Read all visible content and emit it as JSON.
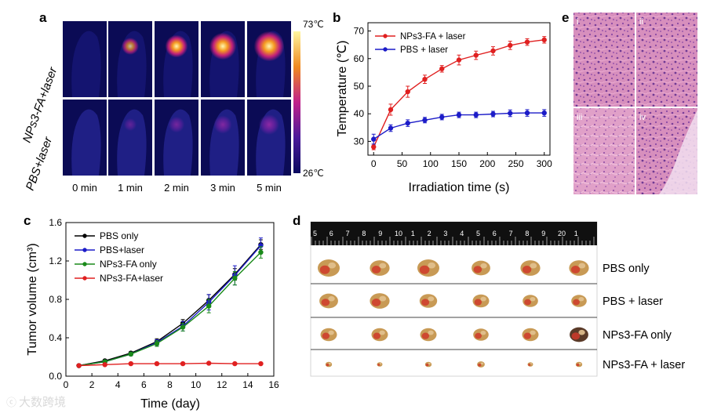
{
  "panels": {
    "a": {
      "letter": "a",
      "row_labels": [
        "NPs3-FA+laser",
        "PBS+laser"
      ],
      "time_labels": [
        "0 min",
        "1 min",
        "2 min",
        "3 min",
        "5 min"
      ],
      "colorbar_max": "73℃",
      "colorbar_min": "26℃",
      "hot_spot_intensity": {
        "npfa": [
          0.0,
          0.35,
          0.6,
          0.8,
          0.95
        ],
        "pbs": [
          0.0,
          0.15,
          0.3,
          0.4,
          0.5
        ]
      }
    },
    "b": {
      "letter": "b"
    },
    "c": {
      "letter": "c"
    },
    "d": {
      "letter": "d",
      "ruler_numbers": [
        "5",
        "6",
        "7",
        "8",
        "9",
        "10",
        "1",
        "2",
        "3",
        "4",
        "5",
        "6",
        "7",
        "8",
        "9",
        "20",
        "1"
      ],
      "rows": [
        {
          "label": "PBS only",
          "sizes": [
            1.0,
            0.9,
            1.0,
            0.85,
            0.9,
            0.9
          ],
          "dark": false
        },
        {
          "label": "PBS + laser",
          "sizes": [
            0.85,
            0.9,
            0.8,
            0.75,
            0.7,
            0.7
          ],
          "dark": false
        },
        {
          "label": "NPs3-FA only",
          "sizes": [
            0.75,
            0.75,
            0.75,
            0.7,
            0.75,
            0.85
          ],
          "dark": true
        },
        {
          "label": "NPs3-FA + laser",
          "sizes": [
            0.3,
            0.25,
            0.3,
            0.35,
            0.25,
            0.3
          ],
          "dark": false
        }
      ]
    },
    "e": {
      "letter": "e",
      "quadrants": [
        "i",
        "ii",
        "iii",
        "iv"
      ]
    }
  },
  "watermark": "大数跨境",
  "chart_data": [
    {
      "type": "line",
      "xlabel": "Irradiation time (s)",
      "ylabel": "Temperature (℃)",
      "xlim": [
        -10,
        310
      ],
      "ylim": [
        25,
        73
      ],
      "xticks": [
        0,
        50,
        100,
        150,
        200,
        250,
        300
      ],
      "yticks": [
        30,
        40,
        50,
        60,
        70
      ],
      "legend_position": "top-left",
      "colors": {
        "NPs3-FA + laser": "#e02020",
        "PBS + laser": "#1c1cc8"
      },
      "x": [
        0,
        30,
        60,
        90,
        120,
        150,
        180,
        210,
        240,
        270,
        300
      ],
      "series": [
        {
          "name": "NPs3-FA + laser",
          "values": [
            28.0,
            41.5,
            48.0,
            52.5,
            56.3,
            59.5,
            61.2,
            62.8,
            64.8,
            66.0,
            66.8
          ],
          "errors": [
            1.0,
            2.0,
            2.0,
            1.5,
            1.2,
            1.8,
            1.5,
            1.5,
            1.5,
            1.2,
            1.2
          ]
        },
        {
          "name": "PBS + laser",
          "values": [
            30.8,
            34.8,
            36.6,
            37.7,
            38.8,
            39.6,
            39.6,
            39.9,
            40.2,
            40.3,
            40.3
          ],
          "errors": [
            1.8,
            1.2,
            1.2,
            1.0,
            1.0,
            1.0,
            1.0,
            1.0,
            1.2,
            1.2,
            1.2
          ]
        }
      ]
    },
    {
      "type": "line",
      "xlabel": "Time (day)",
      "ylabel": "Tumor volume (cm³)",
      "xlim": [
        0,
        16
      ],
      "ylim": [
        0.0,
        1.6
      ],
      "xticks": [
        0,
        2,
        4,
        6,
        8,
        10,
        12,
        14,
        16
      ],
      "yticks": [
        0.0,
        0.4,
        0.8,
        1.2,
        1.6
      ],
      "legend_position": "top-left",
      "colors": {
        "PBS only": "#000000",
        "PBS+laser": "#1c1cc8",
        "NPs3-FA only": "#1a8a1a",
        "NPs3-FA+laser": "#e02020"
      },
      "x": [
        1,
        3,
        5,
        7,
        9,
        11,
        13,
        15
      ],
      "series": [
        {
          "name": "PBS only",
          "values": [
            0.11,
            0.16,
            0.24,
            0.36,
            0.55,
            0.79,
            1.06,
            1.37
          ],
          "errors": [
            0.01,
            0.01,
            0.015,
            0.03,
            0.04,
            0.06,
            0.06,
            0.05
          ]
        },
        {
          "name": "PBS+laser",
          "values": [
            0.11,
            0.15,
            0.23,
            0.35,
            0.52,
            0.77,
            1.05,
            1.36
          ],
          "errors": [
            0.01,
            0.01,
            0.015,
            0.03,
            0.05,
            0.08,
            0.1,
            0.08
          ]
        },
        {
          "name": "NPs3-FA only",
          "values": [
            0.11,
            0.15,
            0.23,
            0.34,
            0.51,
            0.73,
            1.02,
            1.29
          ],
          "errors": [
            0.01,
            0.01,
            0.015,
            0.03,
            0.04,
            0.07,
            0.07,
            0.06
          ]
        },
        {
          "name": "NPs3-FA+laser",
          "values": [
            0.11,
            0.12,
            0.13,
            0.13,
            0.13,
            0.135,
            0.13,
            0.13
          ],
          "errors": [
            0.01,
            0.01,
            0.01,
            0.01,
            0.01,
            0.01,
            0.01,
            0.01
          ]
        }
      ]
    }
  ]
}
